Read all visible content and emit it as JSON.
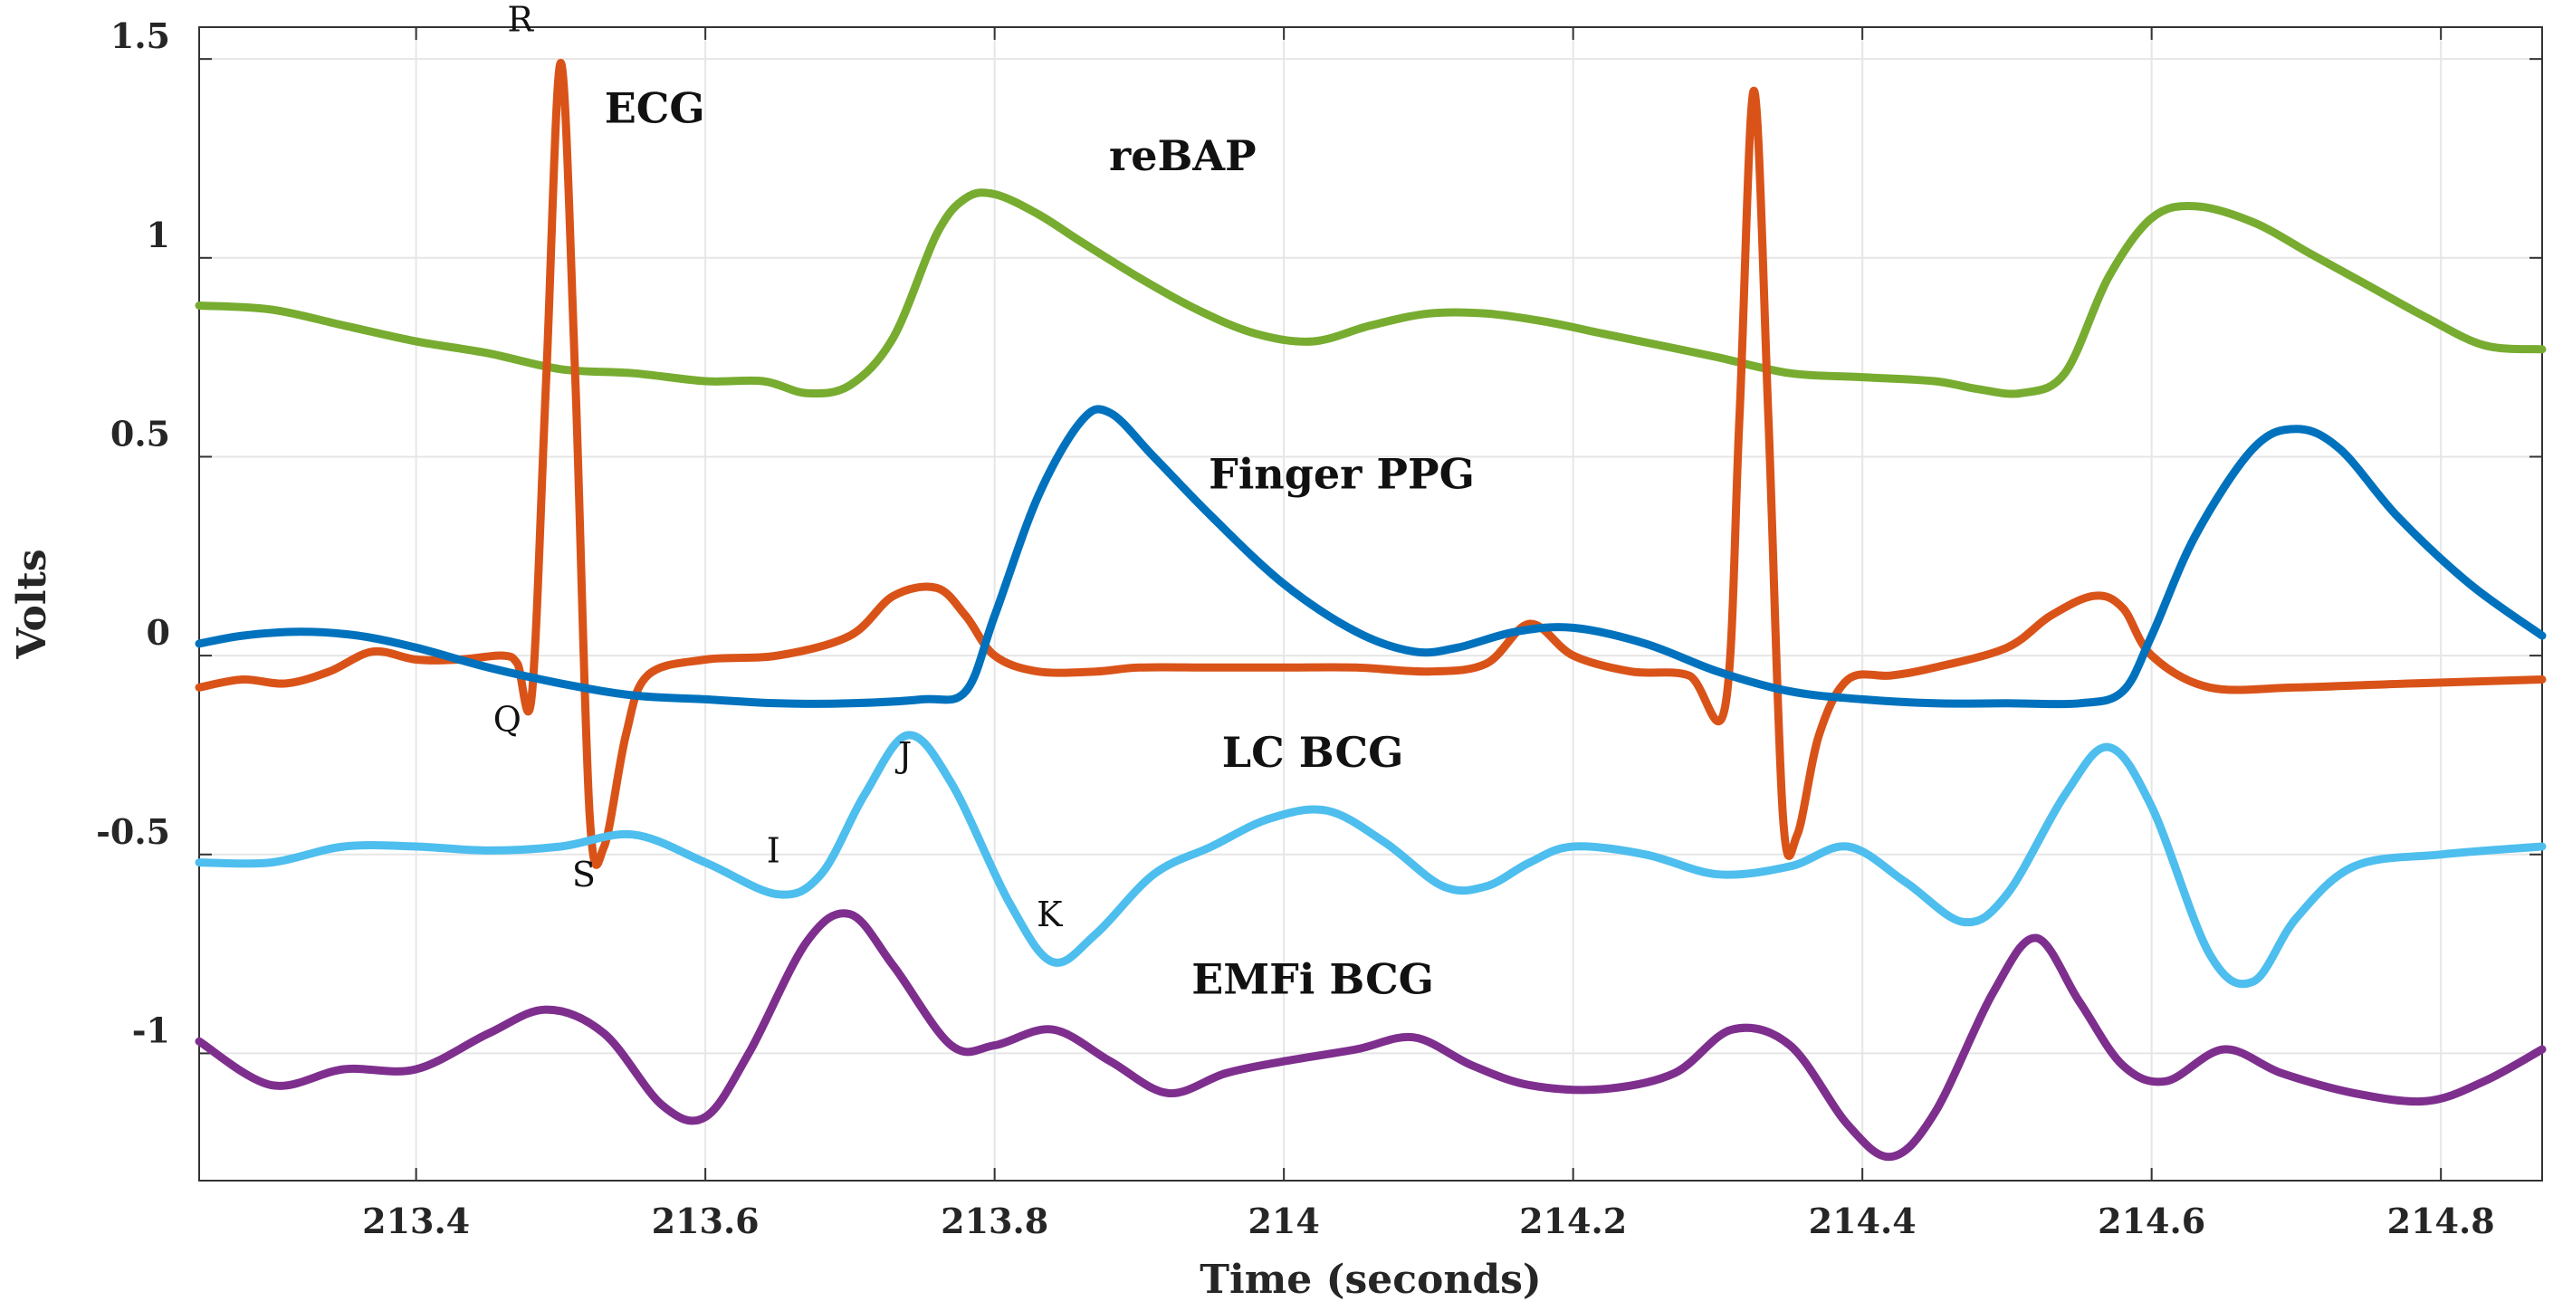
{
  "chart_data": {
    "type": "line",
    "title": "",
    "xlabel": "Time (seconds)",
    "ylabel": "Volts",
    "xlim": [
      213.25,
      214.87
    ],
    "ylim": [
      -1.32,
      1.58
    ],
    "grid": true,
    "xticks": [
      213.4,
      213.6,
      213.8,
      214,
      214.2,
      214.4,
      214.6,
      214.8
    ],
    "xtick_labels": [
      "213.4",
      "213.6",
      "213.8",
      "214",
      "214.2",
      "214.4",
      "214.6",
      "214.8"
    ],
    "yticks": [
      1.5,
      1,
      0.5,
      0,
      -0.5,
      -1
    ],
    "ytick_labels": [
      "1.5",
      "1",
      "0.5",
      "0",
      "-0.5",
      "-1"
    ],
    "series": [
      {
        "name": "reBAP",
        "color": "#77AC30",
        "label_text": "reBAP",
        "label_at": [
          213.93,
          1.22
        ],
        "points": [
          [
            213.25,
            0.88
          ],
          [
            213.3,
            0.87
          ],
          [
            213.35,
            0.83
          ],
          [
            213.4,
            0.79
          ],
          [
            213.45,
            0.76
          ],
          [
            213.5,
            0.72
          ],
          [
            213.55,
            0.71
          ],
          [
            213.6,
            0.69
          ],
          [
            213.64,
            0.69
          ],
          [
            213.67,
            0.66
          ],
          [
            213.7,
            0.68
          ],
          [
            213.73,
            0.8
          ],
          [
            213.76,
            1.06
          ],
          [
            213.78,
            1.15
          ],
          [
            213.8,
            1.16
          ],
          [
            213.83,
            1.11
          ],
          [
            213.86,
            1.04
          ],
          [
            213.9,
            0.95
          ],
          [
            213.94,
            0.87
          ],
          [
            213.98,
            0.81
          ],
          [
            214.02,
            0.79
          ],
          [
            214.06,
            0.83
          ],
          [
            214.1,
            0.86
          ],
          [
            214.14,
            0.86
          ],
          [
            214.18,
            0.84
          ],
          [
            214.22,
            0.81
          ],
          [
            214.26,
            0.78
          ],
          [
            214.3,
            0.75
          ],
          [
            214.35,
            0.71
          ],
          [
            214.4,
            0.7
          ],
          [
            214.45,
            0.69
          ],
          [
            214.48,
            0.67
          ],
          [
            214.51,
            0.66
          ],
          [
            214.54,
            0.71
          ],
          [
            214.57,
            0.95
          ],
          [
            214.6,
            1.1
          ],
          [
            214.63,
            1.13
          ],
          [
            214.67,
            1.09
          ],
          [
            214.71,
            1.01
          ],
          [
            214.75,
            0.93
          ],
          [
            214.79,
            0.85
          ],
          [
            214.83,
            0.78
          ],
          [
            214.87,
            0.77
          ]
        ]
      },
      {
        "name": "ECG",
        "color": "#D95319",
        "label_text": "ECG",
        "label_at": [
          213.565,
          1.34
        ],
        "points": [
          [
            213.25,
            -0.08
          ],
          [
            213.28,
            -0.06
          ],
          [
            213.31,
            -0.07
          ],
          [
            213.34,
            -0.04
          ],
          [
            213.37,
            0.01
          ],
          [
            213.4,
            -0.01
          ],
          [
            213.43,
            -0.01
          ],
          [
            213.46,
            0.0
          ],
          [
            213.47,
            -0.02
          ],
          [
            213.48,
            -0.1
          ],
          [
            213.49,
            0.7
          ],
          [
            213.5,
            1.49
          ],
          [
            213.51,
            0.7
          ],
          [
            213.52,
            -0.4
          ],
          [
            213.53,
            -0.48
          ],
          [
            213.545,
            -0.2
          ],
          [
            213.56,
            -0.05
          ],
          [
            213.6,
            -0.01
          ],
          [
            213.65,
            0.0
          ],
          [
            213.7,
            0.05
          ],
          [
            213.73,
            0.15
          ],
          [
            213.76,
            0.17
          ],
          [
            213.78,
            0.1
          ],
          [
            213.8,
            0.0
          ],
          [
            213.83,
            -0.04
          ],
          [
            213.87,
            -0.04
          ],
          [
            213.9,
            -0.03
          ],
          [
            213.95,
            -0.03
          ],
          [
            214.0,
            -0.03
          ],
          [
            214.05,
            -0.03
          ],
          [
            214.1,
            -0.04
          ],
          [
            214.14,
            -0.02
          ],
          [
            214.17,
            0.08
          ],
          [
            214.2,
            0.0
          ],
          [
            214.24,
            -0.04
          ],
          [
            214.28,
            -0.05
          ],
          [
            214.305,
            -0.13
          ],
          [
            214.315,
            0.6
          ],
          [
            214.325,
            1.42
          ],
          [
            214.335,
            0.6
          ],
          [
            214.345,
            -0.4
          ],
          [
            214.355,
            -0.45
          ],
          [
            214.37,
            -0.2
          ],
          [
            214.39,
            -0.06
          ],
          [
            214.42,
            -0.05
          ],
          [
            214.45,
            -0.03
          ],
          [
            214.5,
            0.02
          ],
          [
            214.53,
            0.1
          ],
          [
            214.56,
            0.15
          ],
          [
            214.58,
            0.12
          ],
          [
            214.6,
            0.0
          ],
          [
            214.64,
            -0.08
          ],
          [
            214.7,
            -0.08
          ],
          [
            214.78,
            -0.07
          ],
          [
            214.87,
            -0.06
          ]
        ]
      },
      {
        "name": "Finger PPG",
        "color": "#0072BD",
        "label_text": "Finger PPG",
        "label_at": [
          214.04,
          0.42
        ],
        "points": [
          [
            213.25,
            0.03
          ],
          [
            213.28,
            0.05
          ],
          [
            213.32,
            0.06
          ],
          [
            213.36,
            0.05
          ],
          [
            213.4,
            0.02
          ],
          [
            213.45,
            -0.03
          ],
          [
            213.5,
            -0.07
          ],
          [
            213.55,
            -0.1
          ],
          [
            213.6,
            -0.11
          ],
          [
            213.65,
            -0.12
          ],
          [
            213.7,
            -0.12
          ],
          [
            213.75,
            -0.11
          ],
          [
            213.78,
            -0.09
          ],
          [
            213.8,
            0.1
          ],
          [
            213.83,
            0.4
          ],
          [
            213.86,
            0.59
          ],
          [
            213.88,
            0.61
          ],
          [
            213.91,
            0.5
          ],
          [
            213.95,
            0.35
          ],
          [
            214.0,
            0.18
          ],
          [
            214.05,
            0.06
          ],
          [
            214.09,
            0.01
          ],
          [
            214.12,
            0.02
          ],
          [
            214.16,
            0.06
          ],
          [
            214.2,
            0.07
          ],
          [
            214.25,
            0.03
          ],
          [
            214.3,
            -0.04
          ],
          [
            214.35,
            -0.09
          ],
          [
            214.4,
            -0.11
          ],
          [
            214.45,
            -0.12
          ],
          [
            214.5,
            -0.12
          ],
          [
            214.55,
            -0.12
          ],
          [
            214.58,
            -0.09
          ],
          [
            214.6,
            0.05
          ],
          [
            214.63,
            0.3
          ],
          [
            214.67,
            0.52
          ],
          [
            214.7,
            0.57
          ],
          [
            214.73,
            0.52
          ],
          [
            214.77,
            0.35
          ],
          [
            214.82,
            0.18
          ],
          [
            214.87,
            0.05
          ]
        ]
      },
      {
        "name": "LC BCG",
        "color": "#4DBEEE",
        "label_text": "LC BCG",
        "label_at": [
          214.02,
          -0.28
        ],
        "points": [
          [
            213.25,
            -0.52
          ],
          [
            213.3,
            -0.52
          ],
          [
            213.35,
            -0.48
          ],
          [
            213.4,
            -0.48
          ],
          [
            213.45,
            -0.49
          ],
          [
            213.5,
            -0.48
          ],
          [
            213.55,
            -0.45
          ],
          [
            213.6,
            -0.52
          ],
          [
            213.65,
            -0.6
          ],
          [
            213.68,
            -0.55
          ],
          [
            213.71,
            -0.35
          ],
          [
            213.74,
            -0.2
          ],
          [
            213.77,
            -0.32
          ],
          [
            213.81,
            -0.62
          ],
          [
            213.84,
            -0.77
          ],
          [
            213.87,
            -0.7
          ],
          [
            213.91,
            -0.55
          ],
          [
            213.95,
            -0.48
          ],
          [
            213.99,
            -0.41
          ],
          [
            214.03,
            -0.39
          ],
          [
            214.07,
            -0.47
          ],
          [
            214.11,
            -0.58
          ],
          [
            214.14,
            -0.58
          ],
          [
            214.17,
            -0.52
          ],
          [
            214.2,
            -0.48
          ],
          [
            214.25,
            -0.5
          ],
          [
            214.3,
            -0.55
          ],
          [
            214.35,
            -0.53
          ],
          [
            214.39,
            -0.48
          ],
          [
            214.43,
            -0.57
          ],
          [
            214.47,
            -0.67
          ],
          [
            214.5,
            -0.6
          ],
          [
            214.54,
            -0.35
          ],
          [
            214.57,
            -0.23
          ],
          [
            214.6,
            -0.38
          ],
          [
            214.64,
            -0.75
          ],
          [
            214.67,
            -0.82
          ],
          [
            214.7,
            -0.66
          ],
          [
            214.74,
            -0.53
          ],
          [
            214.8,
            -0.5
          ],
          [
            214.87,
            -0.48
          ]
        ]
      },
      {
        "name": "EMFi BCG",
        "color": "#7E2F8E",
        "label_text": "EMFi BCG",
        "label_at": [
          214.02,
          -0.85
        ],
        "points": [
          [
            213.25,
            -0.97
          ],
          [
            213.3,
            -1.08
          ],
          [
            213.35,
            -1.04
          ],
          [
            213.4,
            -1.04
          ],
          [
            213.45,
            -0.95
          ],
          [
            213.49,
            -0.89
          ],
          [
            213.53,
            -0.95
          ],
          [
            213.57,
            -1.13
          ],
          [
            213.6,
            -1.16
          ],
          [
            213.63,
            -1.0
          ],
          [
            213.67,
            -0.72
          ],
          [
            213.7,
            -0.65
          ],
          [
            213.73,
            -0.78
          ],
          [
            213.77,
            -0.98
          ],
          [
            213.8,
            -0.98
          ],
          [
            213.84,
            -0.94
          ],
          [
            213.88,
            -1.02
          ],
          [
            213.92,
            -1.1
          ],
          [
            213.96,
            -1.05
          ],
          [
            214.0,
            -1.02
          ],
          [
            214.05,
            -0.99
          ],
          [
            214.09,
            -0.96
          ],
          [
            214.13,
            -1.03
          ],
          [
            214.17,
            -1.08
          ],
          [
            214.22,
            -1.09
          ],
          [
            214.27,
            -1.05
          ],
          [
            214.31,
            -0.94
          ],
          [
            214.35,
            -0.98
          ],
          [
            214.39,
            -1.18
          ],
          [
            214.42,
            -1.26
          ],
          [
            214.45,
            -1.15
          ],
          [
            214.49,
            -0.85
          ],
          [
            214.52,
            -0.71
          ],
          [
            214.55,
            -0.87
          ],
          [
            214.58,
            -1.03
          ],
          [
            214.61,
            -1.07
          ],
          [
            214.65,
            -0.99
          ],
          [
            214.69,
            -1.05
          ],
          [
            214.74,
            -1.1
          ],
          [
            214.79,
            -1.12
          ],
          [
            214.83,
            -1.07
          ],
          [
            214.87,
            -0.99
          ]
        ]
      }
    ],
    "annotations": [
      {
        "text": "R",
        "x": 213.472,
        "y": 1.57
      },
      {
        "text": "Q",
        "x": 213.463,
        "y": -0.19
      },
      {
        "text": "S",
        "x": 213.516,
        "y": -0.58
      },
      {
        "text": "I",
        "x": 213.647,
        "y": -0.52
      },
      {
        "text": "J",
        "x": 213.738,
        "y": -0.28
      },
      {
        "text": "K",
        "x": 213.838,
        "y": -0.68
      }
    ]
  }
}
